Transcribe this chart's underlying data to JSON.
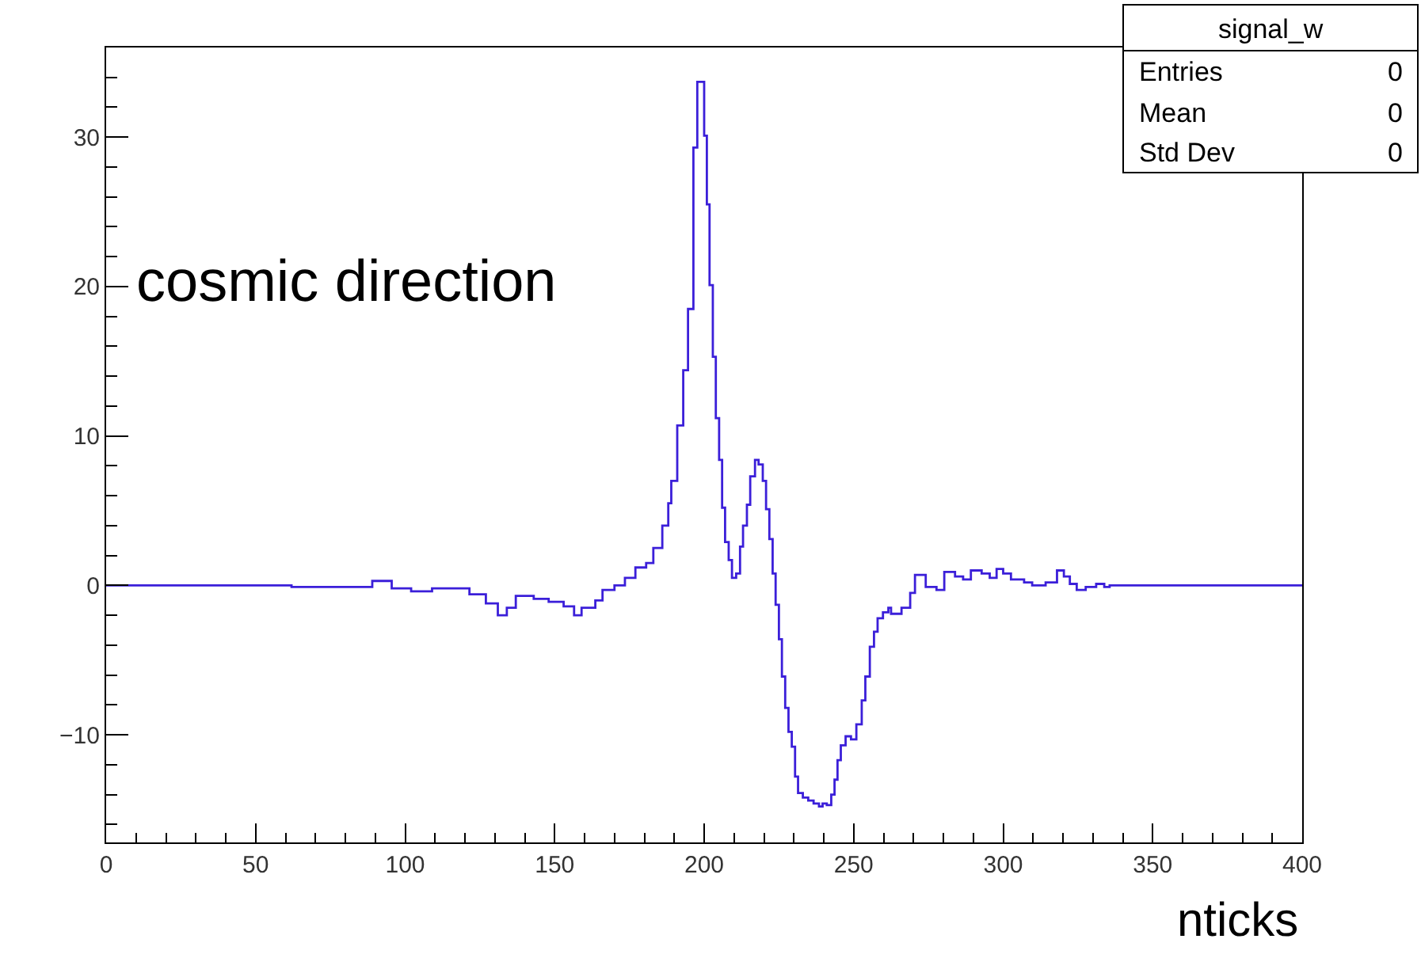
{
  "chart_data": {
    "type": "step",
    "title": "signal_w",
    "xlabel": "nticks",
    "annotations": [
      "cosmic direction",
      "Entries",
      "0",
      "Mean",
      "0",
      "Std Dev",
      "0"
    ],
    "xlim": [
      0,
      400
    ],
    "xticks": [
      0,
      50,
      100,
      150,
      200,
      250,
      300,
      350,
      400
    ],
    "ylim": [
      -17.2,
      36
    ],
    "yticks": [
      -10,
      0,
      10,
      20,
      30
    ],
    "series": [
      {
        "color": "#3b1fd9",
        "x": [
          0,
          62,
          82,
          89,
          95.5,
          102,
          109,
          116,
          121.5,
          127,
          131,
          134,
          137,
          143,
          148,
          153,
          156.5,
          159,
          163.6,
          166,
          170,
          173.5,
          177,
          180.6,
          183,
          186,
          188,
          189,
          191,
          193,
          194.6,
          196.4,
          197.7,
          199.3,
          200,
          200.9,
          201.8,
          202.9,
          203.9,
          205,
          206,
          207,
          208.2,
          209.3,
          210.7,
          212,
          213,
          214.3,
          215.4,
          217,
          218.2,
          219.6,
          220.7,
          221.8,
          222.9,
          223.9,
          225,
          226,
          227.1,
          228.2,
          229.3,
          230.4,
          231.4,
          233,
          234.8,
          236.6,
          238.4,
          239.6,
          241,
          242.5,
          243.6,
          244.6,
          245.7,
          247.3,
          249.1,
          250.9,
          252.7,
          253.9,
          255.4,
          256.8,
          258,
          259.8,
          261.6,
          262.5,
          266,
          268.9,
          270.5,
          272.3,
          274.1,
          277.7,
          280.3,
          283.9,
          286.6,
          289.2,
          292.8,
          295.5,
          297.8,
          300,
          302.6,
          307,
          309.7,
          314.2,
          318,
          320.3,
          322.3,
          324.6,
          327.6,
          331.1,
          333.8,
          335.6,
          400
        ],
        "values": [
          0,
          -0.1,
          -0.1,
          0.3,
          -0.2,
          -0.4,
          -0.2,
          -0.2,
          -0.6,
          -1.2,
          -2.0,
          -1.5,
          -0.7,
          -0.9,
          -1.1,
          -1.4,
          -2.0,
          -1.5,
          -1.0,
          -0.3,
          0,
          0.5,
          1.2,
          1.5,
          2.5,
          4,
          5.5,
          7,
          10.7,
          14.4,
          18.5,
          29.3,
          33.7,
          33.7,
          30.1,
          25.5,
          20.1,
          15.3,
          11.2,
          8.4,
          5.2,
          2.9,
          1.7,
          0.5,
          0.8,
          2.6,
          4.0,
          5.4,
          7.3,
          8.4,
          8.1,
          7.0,
          5.1,
          3.1,
          0.8,
          -1.3,
          -3.6,
          -6.1,
          -8.2,
          -9.8,
          -10.8,
          -12.8,
          -13.9,
          -14.2,
          -14.4,
          -14.6,
          -14.8,
          -14.6,
          -14.7,
          -14.0,
          -13.0,
          -11.7,
          -10.7,
          -10.1,
          -10.3,
          -9.3,
          -7.7,
          -6.1,
          -4.1,
          -3.1,
          -2.2,
          -1.8,
          -1.5,
          -1.9,
          -1.5,
          -0.5,
          0.7,
          0.7,
          -0.1,
          -0.3,
          0.9,
          0.6,
          0.4,
          1.0,
          0.8,
          0.5,
          1.1,
          0.8,
          0.4,
          0.2,
          0,
          0.2,
          1.0,
          0.6,
          0.1,
          -0.3,
          -0.1,
          0.1,
          -0.1,
          0,
          0
        ]
      }
    ]
  }
}
